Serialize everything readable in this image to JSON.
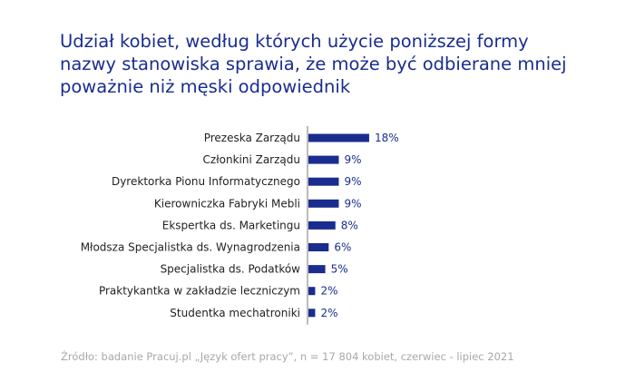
{
  "title_lines": [
    "Udział kobiet, według których użycie poniższej formy",
    "nazwy stanowiska sprawia, że może być odbierane mniej",
    "poważnie niż męski odpowiednik"
  ],
  "source": "Źródło: badanie Pracuj.pl „Język ofert pracy”, n = 17 804 kobiet, czerwiec - lipiec 2021",
  "colors": {
    "bar": "#1a2d8f",
    "value_label": "#1a2d8f",
    "category_label": "#222222",
    "axis": "#777777",
    "title": "#1a2d8f",
    "source": "#a8a8a8"
  },
  "chart_data": {
    "type": "bar",
    "orientation": "horizontal",
    "categories": [
      "Prezeska Zarządu",
      "Członkini Zarządu",
      "Dyrektorka Pionu Informatycznego",
      "Kierowniczka Fabryki Mebli",
      "Ekspertka ds. Marketingu",
      "Młodsza Specjalistka ds. Wynagrodzenia",
      "Specjalistka ds. Podatków",
      "Praktykantka w zakładzie leczniczym",
      "Studentka mechatroniki"
    ],
    "values": [
      18,
      9,
      9,
      9,
      8,
      6,
      5,
      2,
      2
    ],
    "value_labels": [
      "18%",
      "9%",
      "9%",
      "9%",
      "8%",
      "6%",
      "5%",
      "2%",
      "2%"
    ],
    "unit": "%",
    "xlim": [
      0,
      20
    ],
    "grid": false,
    "legend": "none"
  }
}
